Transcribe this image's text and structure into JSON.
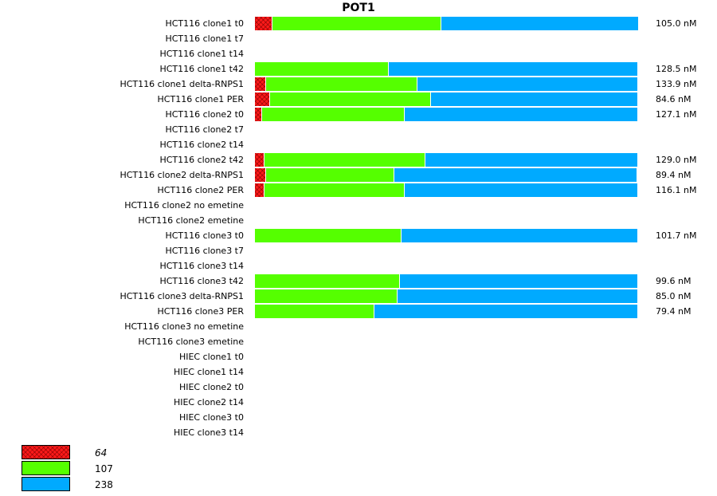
{
  "chart_data": {
    "type": "bar",
    "orientation": "horizontal",
    "stacked": true,
    "normalized": true,
    "title": "POT1",
    "xlabel": "",
    "ylabel": "",
    "xlim": [
      0,
      1
    ],
    "legend_position": "bottom-left",
    "series": [
      {
        "name": "64",
        "color": "#ff2020",
        "pattern": "crosshatch",
        "italic": true
      },
      {
        "name": "107",
        "color": "#55ff00",
        "italic": false
      },
      {
        "name": "238",
        "color": "#00aaff",
        "italic": false
      }
    ],
    "rows": [
      {
        "label": "HCT116 clone1 t0",
        "values": [
          0.045,
          0.44,
          0.515
        ],
        "total": "105.0 nM"
      },
      {
        "label": "HCT116 clone1 t7",
        "values": null,
        "total": ""
      },
      {
        "label": "HCT116 clone1 t14",
        "values": null,
        "total": ""
      },
      {
        "label": "HCT116 clone1 t42",
        "values": [
          0.0,
          0.35,
          0.65
        ],
        "total": "128.5 nM"
      },
      {
        "label": "HCT116 clone1 delta-RNPS1",
        "values": [
          0.03,
          0.395,
          0.575
        ],
        "total": "133.9 nM"
      },
      {
        "label": "HCT116 clone1 PER",
        "values": [
          0.04,
          0.42,
          0.54
        ],
        "total": "84.6 nM"
      },
      {
        "label": "HCT116 clone2 t0",
        "values": [
          0.018,
          0.372,
          0.61
        ],
        "total": "127.1 nM"
      },
      {
        "label": "HCT116 clone2 t7",
        "values": null,
        "total": ""
      },
      {
        "label": "HCT116 clone2 t14",
        "values": null,
        "total": ""
      },
      {
        "label": "HCT116 clone2 t42",
        "values": [
          0.025,
          0.42,
          0.555
        ],
        "total": "129.0 nM"
      },
      {
        "label": "HCT116 clone2 delta-RNPS1",
        "values": [
          0.03,
          0.335,
          0.635
        ],
        "total": "89.4 nM"
      },
      {
        "label": "HCT116 clone2 PER",
        "values": [
          0.025,
          0.365,
          0.61
        ],
        "total": "116.1 nM"
      },
      {
        "label": "HCT116 clone2 no emetine",
        "values": null,
        "total": ""
      },
      {
        "label": "HCT116 clone2 emetine",
        "values": null,
        "total": ""
      },
      {
        "label": "HCT116 clone3 t0",
        "values": [
          0.0,
          0.382,
          0.618
        ],
        "total": "101.7 nM"
      },
      {
        "label": "HCT116 clone3 t7",
        "values": null,
        "total": ""
      },
      {
        "label": "HCT116 clone3 t14",
        "values": null,
        "total": ""
      },
      {
        "label": "HCT116 clone3 t42",
        "values": [
          0.0,
          0.378,
          0.622
        ],
        "total": "99.6 nM"
      },
      {
        "label": "HCT116 clone3 delta-RNPS1",
        "values": [
          0.0,
          0.373,
          0.627
        ],
        "total": "85.0 nM"
      },
      {
        "label": "HCT116 clone3 PER",
        "values": [
          0.0,
          0.312,
          0.688
        ],
        "total": "79.4 nM"
      },
      {
        "label": "HCT116 clone3 no emetine",
        "values": null,
        "total": ""
      },
      {
        "label": "HCT116 clone3 emetine",
        "values": null,
        "total": ""
      },
      {
        "label": "HIEC clone1 t0",
        "values": null,
        "total": ""
      },
      {
        "label": "HIEC clone1 t14",
        "values": null,
        "total": ""
      },
      {
        "label": "HIEC clone2 t0",
        "values": null,
        "total": ""
      },
      {
        "label": "HIEC clone2 t14",
        "values": null,
        "total": ""
      },
      {
        "label": "HIEC clone3 t0",
        "values": null,
        "total": ""
      },
      {
        "label": "HIEC clone3 t14",
        "values": null,
        "total": ""
      }
    ]
  }
}
